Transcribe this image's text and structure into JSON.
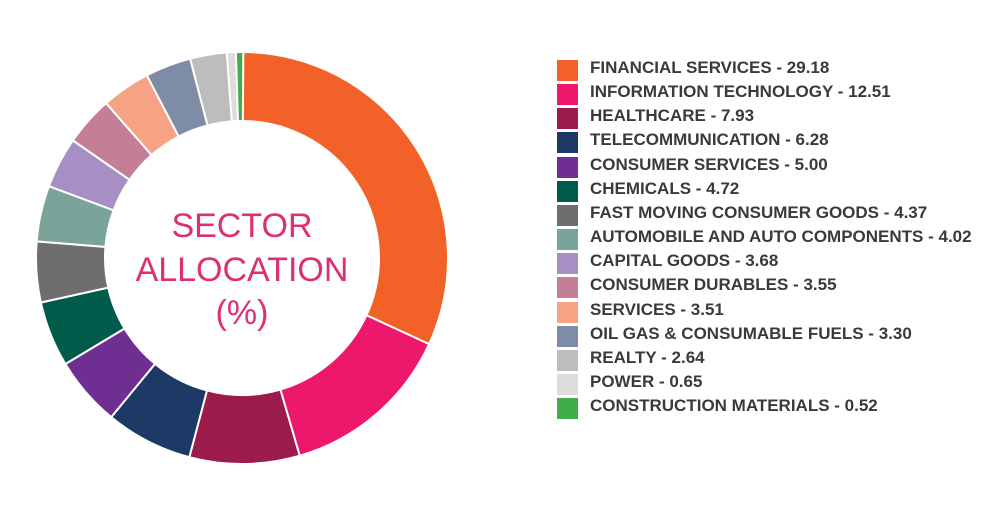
{
  "chart_data": {
    "type": "pie",
    "style": "donut",
    "title": "SECTOR ALLOCATION (%)",
    "center_label_lines": [
      "SECTOR",
      "ALLOCATION",
      "(%)"
    ],
    "legend_position": "right",
    "slices": [
      {
        "label": "FINANCIAL SERVICES - 29.18",
        "value": 29.18,
        "color": "#f26127"
      },
      {
        "label": "INFORMATION TECHNOLOGY - 12.51",
        "value": 12.51,
        "color": "#ed176b"
      },
      {
        "label": "HEALTHCARE - 7.93",
        "value": 7.93,
        "color": "#9b1b4d"
      },
      {
        "label": "TELECOMMUNICATION - 6.28",
        "value": 6.28,
        "color": "#1d3a66"
      },
      {
        "label": "CONSUMER SERVICES - 5.00",
        "value": 5.0,
        "color": "#6f2f92"
      },
      {
        "label": "CHEMICALS - 4.72",
        "value": 4.72,
        "color": "#005b4b"
      },
      {
        "label": "FAST MOVING CONSUMER GOODS - 4.37",
        "value": 4.37,
        "color": "#6e6e6e"
      },
      {
        "label": "AUTOMOBILE AND AUTO COMPONENTS - 4.02",
        "value": 4.02,
        "color": "#7aa39a"
      },
      {
        "label": "CAPITAL GOODS - 3.68",
        "value": 3.68,
        "color": "#a78fc4"
      },
      {
        "label": "CONSUMER DURABLES - 3.55",
        "value": 3.55,
        "color": "#c47f96"
      },
      {
        "label": "SERVICES - 3.51",
        "value": 3.51,
        "color": "#f6a285"
      },
      {
        "label": "OIL GAS & CONSUMABLE FUELS - 3.30",
        "value": 3.3,
        "color": "#7f8ca6"
      },
      {
        "label": "REALTY - 2.64",
        "value": 2.64,
        "color": "#bdbdbd"
      },
      {
        "label": "POWER - 0.65",
        "value": 0.65,
        "color": "#dddddd"
      },
      {
        "label": "CONSTRUCTION MATERIALS - 0.52",
        "value": 0.52,
        "color": "#3fae49"
      }
    ]
  }
}
